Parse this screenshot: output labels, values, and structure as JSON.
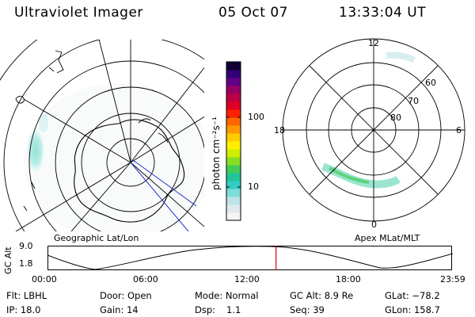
{
  "header": {
    "title": "Ultraviolet Imager",
    "date": "05 Oct 07",
    "time": "13:33:04 UT"
  },
  "geo_panel": {
    "label": "Geographic Lat/Lon"
  },
  "mag_panel": {
    "label": "Apex MLat/MLT",
    "mlt_labels": {
      "top": "12",
      "right": "6",
      "bottom": "0",
      "left": "18"
    },
    "lat_labels": [
      "60",
      "70",
      "80"
    ]
  },
  "colorbar": {
    "unit_label": "photon cm⁻²s⁻¹",
    "tick_labels": [
      "100",
      "10"
    ],
    "colors": [
      "#f4f4f4",
      "#dfe9ec",
      "#bde3e6",
      "#7fdcd6",
      "#33ccc4",
      "#22c49a",
      "#44cc55",
      "#88dd22",
      "#ccee00",
      "#ffee00",
      "#ffcc00",
      "#ff9900",
      "#ff6600",
      "#ff2200",
      "#dd0022",
      "#bb0044",
      "#990066",
      "#660088",
      "#330077",
      "#110033"
    ]
  },
  "altitude_plot": {
    "ylabel": "GC Alt",
    "y_ticks": [
      "9.0",
      "1.8"
    ],
    "x_ticks": [
      "00:00",
      "06:00",
      "12:00",
      "18:00",
      "23:59"
    ],
    "marker_time": "13:33",
    "marker_color": "#dd0000"
  },
  "info": {
    "filter": "Flt: LBHL",
    "door": "Door: Open",
    "mode": "Mode: Normal",
    "gc_alt": "GC Alt: 8.9 Re",
    "glat": "GLat: −78.2",
    "ip": "IP: 18.0",
    "gain": "Gain: 14",
    "dsp_label": "Dsp:",
    "dsp_value": "1.1",
    "seq": "Seq: 39",
    "glon": "GLon: 158.7"
  }
}
